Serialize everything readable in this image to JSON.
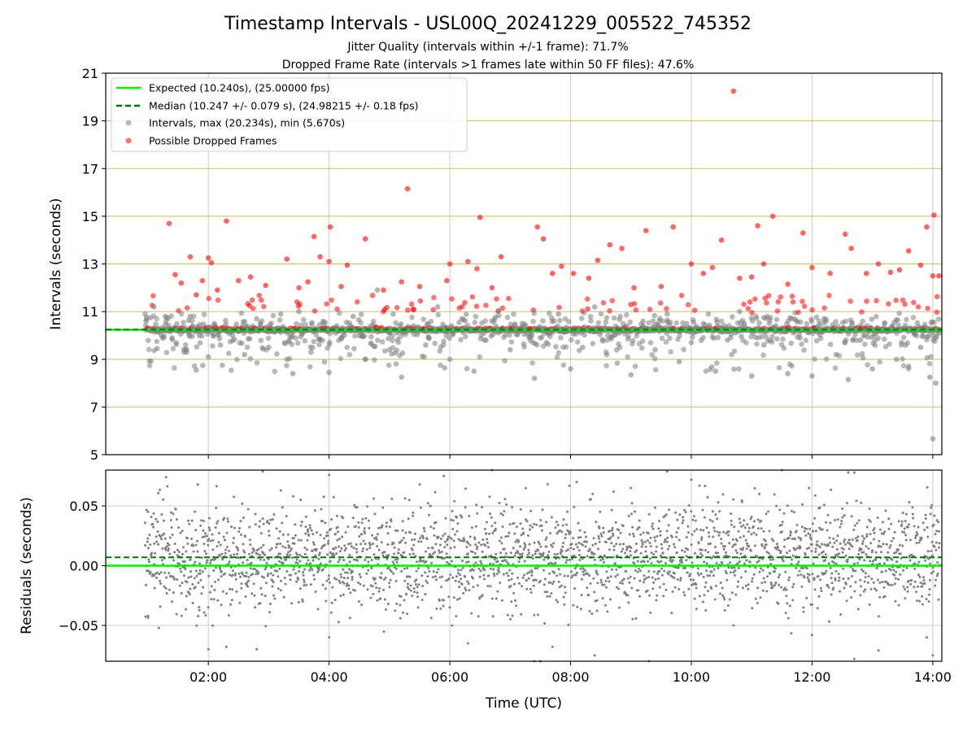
{
  "figure": {
    "title": "Timestamp Intervals - USL00Q_20241229_005522_745352",
    "subtitle1": "Jitter Quality (intervals within +/-1 frame): 71.7%",
    "subtitle2": "Dropped Frame Rate (intervals >1 frames late within 50 FF files): 47.6%"
  },
  "colors": {
    "expected": "#00ee00",
    "median": "#007700",
    "intervals": "#808080",
    "dropped": "#ff0000",
    "hgrid": "#d4b86a",
    "vgrid": "#cccccc"
  },
  "chart_data": [
    {
      "type": "scatter",
      "panel": "intervals",
      "ylabel": "Intervals (seconds)",
      "ylim": [
        5,
        21
      ],
      "yticks": [
        "5",
        "7",
        "9",
        "11",
        "13",
        "15",
        "17",
        "19",
        "21"
      ],
      "xlim_hours": [
        0.3,
        14.15
      ],
      "grid": true,
      "legend_position": "upper-left",
      "legend": [
        "Expected (10.240s), (25.00000 fps)",
        "Median (10.247 +/- 0.079 s), (24.98215 +/- 0.18 fps)",
        "Intervals, max (20.234s), min (5.670s)",
        "Possible Dropped Frames"
      ],
      "expected_interval": 10.24,
      "median_interval": 10.247,
      "max_interval": 20.234,
      "min_interval": 5.67,
      "series": [
        {
          "name": "Intervals, max (20.234s), min (5.670s)",
          "points": [
            [
              1.0,
              10.25
            ],
            [
              1.1,
              11.2
            ],
            [
              1.15,
              9.45
            ],
            [
              1.3,
              10.6
            ],
            [
              1.4,
              9.9
            ],
            [
              1.5,
              10.3
            ],
            [
              1.6,
              9.3
            ],
            [
              1.7,
              10.8
            ],
            [
              1.8,
              8.55
            ],
            [
              1.85,
              10.0
            ],
            [
              2.0,
              9.1
            ],
            [
              2.1,
              10.5
            ],
            [
              2.2,
              9.6
            ],
            [
              2.4,
              10.0
            ],
            [
              2.6,
              9.2
            ],
            [
              2.8,
              10.7
            ],
            [
              3.0,
              9.5
            ],
            [
              3.2,
              10.9
            ],
            [
              3.3,
              9.0
            ],
            [
              3.4,
              8.4
            ],
            [
              3.5,
              11.0
            ],
            [
              3.7,
              9.3
            ],
            [
              3.9,
              10.6
            ],
            [
              4.0,
              8.45
            ],
            [
              4.2,
              9.9
            ],
            [
              4.4,
              10.8
            ],
            [
              4.6,
              9.0
            ],
            [
              4.8,
              11.9
            ],
            [
              5.0,
              9.4
            ],
            [
              5.2,
              8.25
            ],
            [
              5.4,
              10.4
            ],
            [
              5.6,
              9.6
            ],
            [
              5.8,
              11.2
            ],
            [
              6.0,
              9.0
            ],
            [
              6.2,
              10.7
            ],
            [
              6.4,
              8.5
            ],
            [
              6.6,
              9.8
            ],
            [
              6.8,
              11.0
            ],
            [
              7.0,
              9.4
            ],
            [
              7.2,
              10.5
            ],
            [
              7.4,
              8.2
            ],
            [
              7.6,
              9.7
            ],
            [
              7.8,
              10.9
            ],
            [
              8.0,
              8.6
            ],
            [
              8.2,
              9.5
            ],
            [
              8.4,
              11.2
            ],
            [
              8.6,
              9.2
            ],
            [
              8.8,
              10.1
            ],
            [
              9.0,
              8.35
            ],
            [
              9.2,
              10.6
            ],
            [
              9.4,
              9.4
            ],
            [
              9.6,
              10.9
            ],
            [
              9.8,
              8.9
            ],
            [
              10.0,
              9.7
            ],
            [
              10.2,
              10.5
            ],
            [
              10.4,
              8.5
            ],
            [
              10.6,
              9.8
            ],
            [
              10.8,
              11.0
            ],
            [
              11.0,
              8.3
            ],
            [
              11.2,
              9.6
            ],
            [
              11.4,
              10.4
            ],
            [
              11.6,
              8.4
            ],
            [
              11.8,
              9.9
            ],
            [
              12.0,
              8.3
            ],
            [
              12.2,
              10.7
            ],
            [
              12.4,
              9.2
            ],
            [
              12.6,
              8.15
            ],
            [
              12.8,
              9.8
            ],
            [
              13.0,
              8.6
            ],
            [
              13.2,
              10.5
            ],
            [
              13.4,
              9.0
            ],
            [
              13.6,
              8.7
            ],
            [
              13.8,
              9.5
            ],
            [
              13.95,
              8.25
            ],
            [
              14.0,
              5.67
            ],
            [
              14.05,
              8.0
            ],
            [
              14.1,
              10.1
            ]
          ]
        },
        {
          "name": "Possible Dropped Frames",
          "points": [
            [
              1.35,
              14.7
            ],
            [
              1.45,
              12.55
            ],
            [
              1.55,
              12.2
            ],
            [
              1.7,
              13.3
            ],
            [
              1.8,
              11.7
            ],
            [
              1.9,
              12.3
            ],
            [
              2.0,
              13.25
            ],
            [
              2.05,
              13.05
            ],
            [
              2.15,
              11.9
            ],
            [
              2.3,
              14.8
            ],
            [
              2.5,
              12.3
            ],
            [
              2.7,
              12.45
            ],
            [
              2.95,
              12.1
            ],
            [
              3.3,
              13.2
            ],
            [
              3.5,
              12.0
            ],
            [
              3.65,
              12.25
            ],
            [
              3.75,
              14.15
            ],
            [
              3.85,
              13.3
            ],
            [
              4.0,
              13.1
            ],
            [
              4.02,
              14.55
            ],
            [
              4.2,
              12.05
            ],
            [
              4.3,
              12.95
            ],
            [
              4.6,
              14.05
            ],
            [
              4.9,
              11.9
            ],
            [
              5.2,
              12.25
            ],
            [
              5.3,
              16.15
            ],
            [
              5.5,
              12.05
            ],
            [
              5.95,
              12.3
            ],
            [
              6.0,
              13.0
            ],
            [
              6.3,
              13.1
            ],
            [
              6.45,
              12.8
            ],
            [
              6.5,
              14.95
            ],
            [
              6.7,
              12.0
            ],
            [
              6.85,
              13.3
            ],
            [
              7.45,
              14.55
            ],
            [
              7.55,
              14.05
            ],
            [
              7.7,
              12.6
            ],
            [
              7.85,
              12.9
            ],
            [
              8.05,
              12.6
            ],
            [
              8.3,
              12.4
            ],
            [
              8.45,
              13.15
            ],
            [
              8.65,
              13.8
            ],
            [
              8.85,
              13.65
            ],
            [
              9.05,
              12.0
            ],
            [
              9.25,
              14.4
            ],
            [
              9.5,
              12.05
            ],
            [
              9.7,
              14.55
            ],
            [
              10.0,
              13.0
            ],
            [
              10.2,
              12.6
            ],
            [
              10.35,
              12.85
            ],
            [
              10.5,
              14.0
            ],
            [
              10.7,
              20.25
            ],
            [
              10.8,
              12.4
            ],
            [
              11.0,
              12.45
            ],
            [
              11.1,
              14.6
            ],
            [
              11.2,
              13.0
            ],
            [
              11.35,
              15.0
            ],
            [
              11.6,
              12.15
            ],
            [
              11.85,
              14.3
            ],
            [
              12.0,
              12.85
            ],
            [
              12.3,
              12.6
            ],
            [
              12.55,
              14.25
            ],
            [
              12.65,
              13.65
            ],
            [
              12.9,
              12.6
            ],
            [
              13.1,
              13.0
            ],
            [
              13.3,
              12.65
            ],
            [
              13.45,
              12.75
            ],
            [
              13.6,
              13.55
            ],
            [
              13.8,
              12.95
            ],
            [
              13.9,
              14.55
            ],
            [
              14.0,
              12.5
            ],
            [
              14.02,
              15.05
            ],
            [
              14.1,
              12.5
            ]
          ]
        }
      ]
    },
    {
      "type": "scatter",
      "panel": "residuals",
      "xlabel": "Time (UTC)",
      "ylabel": "Residuals (seconds)",
      "ylim": [
        -0.08,
        0.08
      ],
      "yticks": [
        "−0.05",
        "0.00",
        "0.05"
      ],
      "xticks": [
        "02:00",
        "04:00",
        "06:00",
        "08:00",
        "10:00",
        "12:00",
        "14:00"
      ],
      "xlim_hours": [
        0.3,
        14.15
      ],
      "grid": true,
      "expected_residual": 0.0,
      "median_residual": 0.007,
      "series": [
        {
          "name": "",
          "points": [
            [
              1.0,
              0.045
            ],
            [
              1.0,
              -0.042
            ],
            [
              1.3,
              0.074
            ],
            [
              1.4,
              -0.03
            ],
            [
              2.0,
              -0.07
            ],
            [
              2.3,
              -0.068
            ],
            [
              2.8,
              -0.07
            ],
            [
              2.9,
              0.079
            ],
            [
              3.2,
              0.063
            ],
            [
              4.0,
              0.076
            ],
            [
              4.0,
              -0.06
            ],
            [
              5.5,
              0.068
            ],
            [
              5.9,
              0.075
            ],
            [
              6.3,
              -0.065
            ],
            [
              6.7,
              0.08
            ],
            [
              7.4,
              -0.08
            ],
            [
              7.5,
              -0.08
            ],
            [
              7.7,
              -0.068
            ],
            [
              8.1,
              0.07
            ],
            [
              8.4,
              -0.075
            ],
            [
              9.0,
              0.065
            ],
            [
              9.3,
              -0.08
            ],
            [
              9.6,
              0.079
            ],
            [
              10.0,
              0.072
            ],
            [
              10.7,
              -0.05
            ],
            [
              11.5,
              0.08
            ],
            [
              11.95,
              0.065
            ],
            [
              12.0,
              -0.058
            ],
            [
              12.6,
              0.078
            ],
            [
              12.7,
              0.078
            ],
            [
              12.7,
              -0.078
            ],
            [
              13.1,
              -0.071
            ],
            [
              13.9,
              -0.06
            ],
            [
              14.0,
              -0.075
            ]
          ]
        }
      ]
    }
  ]
}
